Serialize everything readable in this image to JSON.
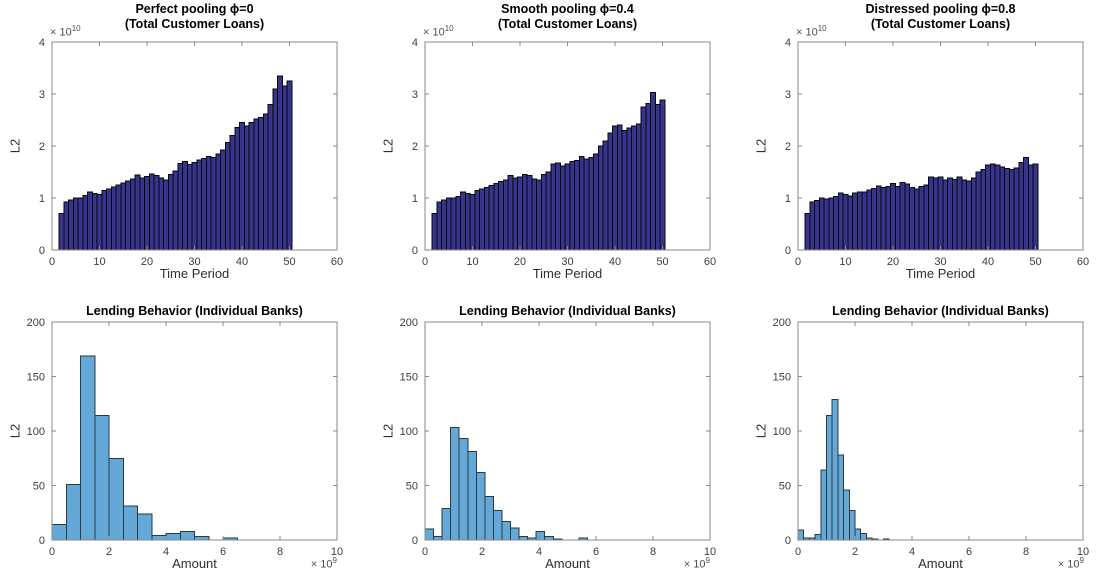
{
  "figure": {
    "background": "#ffffff"
  },
  "chart_data": [
    {
      "id": "perfect-pooling-total-loans",
      "type": "bar",
      "title": [
        "Perfect pooling ϕ=0",
        "(Total Customer Loans)"
      ],
      "xlabel": "Time Period",
      "ylabel": "L2",
      "scale": {
        "mult": "× 10",
        "exp": "10",
        "applies_to": "y-axis"
      },
      "xlim": [
        0,
        60
      ],
      "ylim": [
        0,
        4
      ],
      "xticks": [
        0,
        10,
        20,
        30,
        40,
        50,
        60
      ],
      "yticks": [
        0,
        1,
        2,
        3,
        4
      ],
      "legend": "none",
      "grid": "off",
      "bars": {
        "x_start": 1.5,
        "bin_width": 1,
        "values": [
          0.7,
          0.92,
          0.96,
          1.0,
          1.0,
          1.05,
          1.12,
          1.09,
          1.07,
          1.14,
          1.17,
          1.21,
          1.25,
          1.29,
          1.33,
          1.37,
          1.44,
          1.38,
          1.41,
          1.46,
          1.43,
          1.38,
          1.35,
          1.45,
          1.52,
          1.66,
          1.7,
          1.64,
          1.68,
          1.73,
          1.76,
          1.8,
          1.78,
          1.85,
          1.92,
          2.07,
          2.2,
          2.36,
          2.45,
          2.38,
          2.45,
          2.52,
          2.55,
          2.62,
          2.8,
          3.1,
          3.35,
          3.15,
          3.25
        ]
      },
      "colors": {
        "fill": "#38348c",
        "edge": "#06060f"
      }
    },
    {
      "id": "smooth-pooling-total-loans",
      "type": "bar",
      "title": [
        "Smooth pooling ϕ=0.4",
        "(Total Customer Loans)"
      ],
      "xlabel": "Time Period",
      "ylabel": "L2",
      "scale": {
        "mult": "× 10",
        "exp": "10",
        "applies_to": "y-axis"
      },
      "xlim": [
        0,
        60
      ],
      "ylim": [
        0,
        4
      ],
      "xticks": [
        0,
        10,
        20,
        30,
        40,
        50,
        60
      ],
      "yticks": [
        0,
        1,
        2,
        3,
        4
      ],
      "legend": "none",
      "grid": "off",
      "bars": {
        "x_start": 1.5,
        "bin_width": 1,
        "values": [
          0.7,
          0.92,
          0.96,
          1.0,
          1.0,
          1.03,
          1.12,
          1.09,
          1.07,
          1.14,
          1.17,
          1.2,
          1.24,
          1.28,
          1.32,
          1.35,
          1.43,
          1.38,
          1.4,
          1.45,
          1.43,
          1.37,
          1.35,
          1.45,
          1.5,
          1.65,
          1.67,
          1.62,
          1.65,
          1.7,
          1.72,
          1.8,
          1.75,
          1.78,
          1.85,
          2.0,
          2.1,
          2.25,
          2.38,
          2.4,
          2.3,
          2.35,
          2.38,
          2.42,
          2.75,
          2.82,
          3.03,
          2.8,
          2.88
        ]
      },
      "colors": {
        "fill": "#38348c",
        "edge": "#06060f"
      }
    },
    {
      "id": "distressed-pooling-total-loans",
      "type": "bar",
      "title": [
        "Distressed pooling ϕ=0.8",
        "(Total Customer Loans)"
      ],
      "xlabel": "Time Period",
      "ylabel": "L2",
      "scale": {
        "mult": "× 10",
        "exp": "10",
        "applies_to": "y-axis"
      },
      "xlim": [
        0,
        60
      ],
      "ylim": [
        0,
        4
      ],
      "xticks": [
        0,
        10,
        20,
        30,
        40,
        50,
        60
      ],
      "yticks": [
        0,
        1,
        2,
        3,
        4
      ],
      "legend": "none",
      "grid": "off",
      "bars": {
        "x_start": 1.5,
        "bin_width": 1,
        "values": [
          0.7,
          0.92,
          0.95,
          1.0,
          0.98,
          1.0,
          1.03,
          1.1,
          1.07,
          1.04,
          1.1,
          1.12,
          1.12,
          1.15,
          1.18,
          1.23,
          1.2,
          1.22,
          1.28,
          1.22,
          1.3,
          1.27,
          1.2,
          1.17,
          1.22,
          1.25,
          1.4,
          1.38,
          1.4,
          1.35,
          1.38,
          1.36,
          1.4,
          1.35,
          1.33,
          1.38,
          1.5,
          1.55,
          1.63,
          1.65,
          1.63,
          1.6,
          1.57,
          1.55,
          1.58,
          1.68,
          1.78,
          1.63,
          1.65
        ]
      },
      "colors": {
        "fill": "#38348c",
        "edge": "#06060f"
      }
    },
    {
      "id": "lending-behavior-hist-perfect",
      "type": "histogram",
      "title": [
        "Lending Behavior (Individual Banks)"
      ],
      "xlabel": "Amount",
      "ylabel": "L2",
      "scale": {
        "mult": "× 10",
        "exp": "9",
        "applies_to": "x-axis"
      },
      "xlim": [
        0,
        10
      ],
      "ylim": [
        0,
        200
      ],
      "xticks": [
        0,
        2,
        4,
        6,
        8,
        10
      ],
      "yticks": [
        0,
        50,
        100,
        150,
        200
      ],
      "legend": "none",
      "grid": "off",
      "bars": {
        "x_start": 0,
        "bin_width": 0.5,
        "values": [
          14,
          51,
          169,
          114,
          75,
          31,
          24,
          4,
          6,
          8,
          3,
          0,
          2
        ]
      },
      "colors": {
        "fill": "#64a8d7",
        "edge": "#2b3940"
      }
    },
    {
      "id": "lending-behavior-hist-smooth",
      "type": "histogram",
      "title": [
        "Lending Behavior (Individual Banks)"
      ],
      "xlabel": "Amount",
      "ylabel": "L2",
      "scale": {
        "mult": "× 10",
        "exp": "9",
        "applies_to": "x-axis"
      },
      "xlim": [
        0,
        10
      ],
      "ylim": [
        0,
        200
      ],
      "xticks": [
        0,
        2,
        4,
        6,
        8,
        10
      ],
      "yticks": [
        0,
        50,
        100,
        150,
        200
      ],
      "legend": "none",
      "grid": "off",
      "bars": {
        "x_start": 0,
        "bin_width": 0.3,
        "values": [
          10,
          3,
          29,
          103,
          93,
          81,
          62,
          40,
          27,
          17,
          11,
          3,
          2,
          8,
          3,
          1,
          0,
          0,
          2
        ]
      },
      "colors": {
        "fill": "#64a8d7",
        "edge": "#2b3940"
      }
    },
    {
      "id": "lending-behavior-hist-distressed",
      "type": "histogram",
      "title": [
        "Lending Behavior (Individual Banks)"
      ],
      "xlabel": "Amount",
      "ylabel": "L2",
      "scale": {
        "mult": "× 10",
        "exp": "9",
        "applies_to": "x-axis"
      },
      "xlim": [
        0,
        10
      ],
      "ylim": [
        0,
        200
      ],
      "xticks": [
        0,
        2,
        4,
        6,
        8,
        10
      ],
      "yticks": [
        0,
        50,
        100,
        150,
        200
      ],
      "legend": "none",
      "grid": "off",
      "bars": {
        "x_start": 0,
        "bin_width": 0.2,
        "values": [
          9,
          2,
          2,
          5,
          64,
          114,
          129,
          78,
          46,
          27,
          10,
          6,
          2,
          1,
          0,
          1
        ]
      },
      "colors": {
        "fill": "#64a8d7",
        "edge": "#2b3940"
      }
    }
  ]
}
